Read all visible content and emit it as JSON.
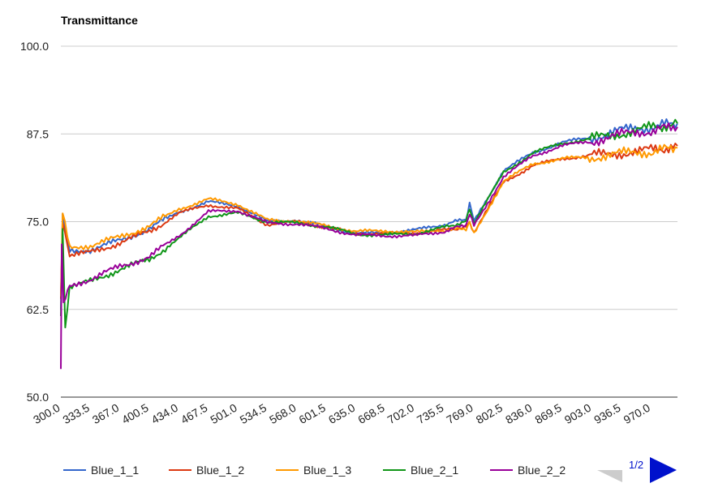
{
  "chart_data": {
    "type": "line",
    "title": "Transmittance",
    "xlabel": "",
    "ylabel": "",
    "xlim": [
      300.0,
      1000.0
    ],
    "ylim": [
      50.0,
      100.0
    ],
    "y_ticks": [
      "50.0",
      "62.5",
      "75.0",
      "87.5",
      "100.0"
    ],
    "x_tick_labels": [
      "300.0",
      "333.5",
      "367.0",
      "400.5",
      "434.0",
      "467.5",
      "501.0",
      "534.5",
      "568.0",
      "601.5",
      "635.0",
      "668.5",
      "702.0",
      "735.5",
      "769.0",
      "802.5",
      "836.0",
      "869.5",
      "903.0",
      "936.5",
      "970.0"
    ],
    "grid": true,
    "legend_position": "bottom",
    "series": [
      {
        "name": "Blue_1_1",
        "color": "#3366cc",
        "x": [
          300,
          302,
          310,
          333.5,
          367,
          400.5,
          434,
          467.5,
          501,
          534.5,
          568,
          601.5,
          635,
          668.5,
          702,
          735.5,
          760,
          764,
          769,
          802.5,
          836,
          869.5,
          903,
          936.5,
          970,
          1000
        ],
        "y": [
          62,
          76,
          71,
          71,
          72.3,
          74,
          76.4,
          77.8,
          77.3,
          75.0,
          75.2,
          74.3,
          73.3,
          73.4,
          73.8,
          74.6,
          75.4,
          77.5,
          75.0,
          82.3,
          84.8,
          86.3,
          87.0,
          88.0,
          88.5,
          89.0
        ]
      },
      {
        "name": "Blue_1_2",
        "color": "#dc3912",
        "x": [
          300,
          302,
          310,
          333.5,
          367,
          400.5,
          434,
          467.5,
          501,
          534.5,
          568,
          601.5,
          635,
          668.5,
          702,
          735.5,
          760,
          764,
          769,
          802.5,
          836,
          869.5,
          903,
          936.5,
          970,
          1000
        ],
        "y": [
          64,
          75,
          70,
          70.6,
          72.0,
          73.6,
          76.2,
          77.4,
          76.8,
          74.6,
          75.0,
          74.2,
          73.3,
          73.3,
          73.4,
          73.8,
          74.2,
          75.0,
          73.5,
          80.6,
          83.0,
          84.0,
          84.4,
          84.8,
          85.2,
          85.8
        ]
      },
      {
        "name": "Blue_1_3",
        "color": "#ff9900",
        "x": [
          300,
          302,
          310,
          333.5,
          367,
          400.5,
          434,
          467.5,
          501,
          534.5,
          568,
          601.5,
          635,
          668.5,
          702,
          735.5,
          760,
          764,
          769,
          802.5,
          836,
          869.5,
          903,
          936.5,
          970,
          1000
        ],
        "y": [
          64,
          76.5,
          71.5,
          71.6,
          72.8,
          74.4,
          76.8,
          78.2,
          77.5,
          75.2,
          75.1,
          74.4,
          73.6,
          73.7,
          73.5,
          73.8,
          74.0,
          74.8,
          73.2,
          80.8,
          83.2,
          84.0,
          84.2,
          84.7,
          85.0,
          85.5
        ]
      },
      {
        "name": "Blue_2_1",
        "color": "#109618",
        "x": [
          300,
          302,
          305,
          310,
          333.5,
          367,
          400.5,
          434,
          467.5,
          501,
          534.5,
          568,
          601.5,
          635,
          668.5,
          702,
          735.5,
          760,
          764,
          769,
          802.5,
          836,
          869.5,
          903,
          936.5,
          970,
          1000
        ],
        "y": [
          62,
          74,
          60,
          65.5,
          66.5,
          68.2,
          69.6,
          72.6,
          75.8,
          76.2,
          75.0,
          74.8,
          74.3,
          73.2,
          73.1,
          73.3,
          74.2,
          75.0,
          77.0,
          74.8,
          82.0,
          84.8,
          86.2,
          86.8,
          87.6,
          88.4,
          89.0
        ]
      },
      {
        "name": "Blue_2_2",
        "color": "#990099",
        "x": [
          300,
          301,
          303,
          310,
          333.5,
          367,
          400.5,
          434,
          467.5,
          501,
          534.5,
          568,
          601.5,
          635,
          668.5,
          702,
          735.5,
          760,
          764,
          769,
          802.5,
          836,
          869.5,
          903,
          936.5,
          970,
          1000
        ],
        "y": [
          54,
          72,
          63,
          66,
          66.8,
          68.6,
          70.0,
          73.0,
          76.4,
          76.6,
          74.8,
          74.7,
          74.0,
          73.1,
          73.0,
          73.0,
          73.6,
          74.6,
          76.0,
          74.4,
          81.4,
          84.4,
          85.8,
          86.5,
          87.4,
          88.0,
          88.5
        ]
      }
    ]
  },
  "legend": {
    "items": [
      "Blue_1_1",
      "Blue_1_2",
      "Blue_1_3",
      "Blue_2_1",
      "Blue_2_2"
    ]
  },
  "pager": {
    "label": "1/2",
    "prev_color": "#cccccc",
    "next_color": "#0011cc",
    "prev_icon": "triangle-left-icon",
    "next_icon": "triangle-right-icon"
  }
}
